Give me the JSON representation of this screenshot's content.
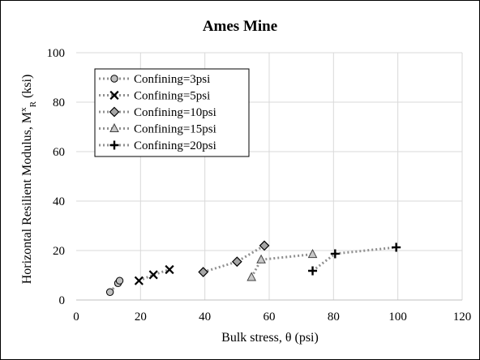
{
  "chart_data": {
    "type": "scatter",
    "title": "Ames Mine",
    "xlabel": "Bulk stress, θ (psi)",
    "ylabel_parts": [
      "Horizontal Resilient Modulus, M",
      "x",
      "R",
      " (ksi)"
    ],
    "xlim": [
      0,
      120
    ],
    "ylim": [
      0,
      100
    ],
    "x_ticks": [
      0,
      20,
      40,
      60,
      80,
      100,
      120
    ],
    "y_ticks": [
      0,
      20,
      40,
      60,
      80,
      100
    ],
    "grid": true,
    "legend_position": "top-left",
    "series": [
      {
        "name": "Confining=3psi",
        "marker": "circle",
        "x": [
          10.5,
          13.0,
          13.5
        ],
        "y": [
          3.2,
          6.8,
          7.8
        ]
      },
      {
        "name": "Confining=5psi",
        "marker": "x",
        "x": [
          19.5,
          24.0,
          29.0
        ],
        "y": [
          7.8,
          10.2,
          12.3
        ]
      },
      {
        "name": "Confining=10psi",
        "marker": "diamond",
        "x": [
          39.5,
          50.0,
          58.5
        ],
        "y": [
          11.3,
          15.5,
          22.0
        ]
      },
      {
        "name": "Confining=15psi",
        "marker": "triangle",
        "x": [
          54.5,
          57.5,
          73.5
        ],
        "y": [
          9.2,
          16.3,
          18.5
        ]
      },
      {
        "name": "Confining=20psi",
        "marker": "plus",
        "x": [
          73.5,
          80.5,
          99.5
        ],
        "y": [
          11.8,
          18.7,
          21.3
        ]
      }
    ],
    "colors": {
      "line": "#909090",
      "marker_stroke": "#000000",
      "circle_fill": "#bfbfbf",
      "diamond_fill": "#a6a6a6",
      "triangle_fill": "#c8c8c8",
      "grid": "#d9d9d9"
    }
  }
}
